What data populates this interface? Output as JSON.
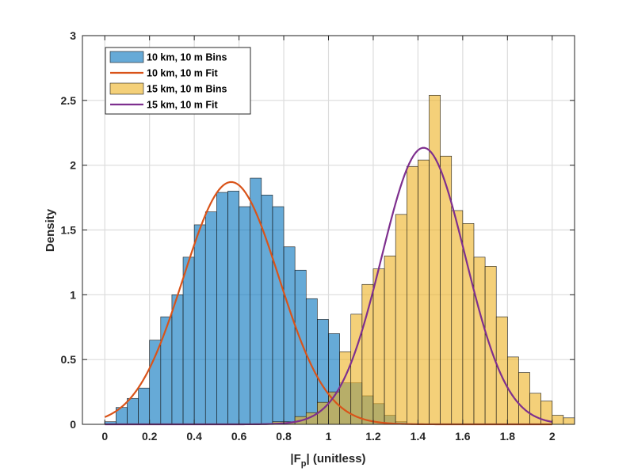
{
  "chart_data": {
    "type": "histogram",
    "xlabel": "|F_p| (unitless)",
    "xlabel_parts": {
      "main": "|F",
      "sub": "p",
      "tail": "| (unitless)"
    },
    "ylabel": "Density",
    "xlim": [
      -0.1,
      2.1
    ],
    "ylim": [
      0,
      3
    ],
    "xticks": [
      0,
      0.2,
      0.4,
      0.6,
      0.8,
      1,
      1.2,
      1.4,
      1.6,
      1.8,
      2
    ],
    "xtick_labels": [
      "0",
      "0.2",
      "0.4",
      "0.6",
      "0.8",
      "1",
      "1.2",
      "1.4",
      "1.6",
      "1.8",
      "2"
    ],
    "yticks": [
      0,
      0.5,
      1,
      1.5,
      2,
      2.5,
      3
    ],
    "ytick_labels": [
      "0",
      "0.5",
      "1",
      "1.5",
      "2",
      "2.5",
      "3"
    ],
    "grid": true,
    "legend_position": "top-left",
    "bin_width": 0.05,
    "series": [
      {
        "name": "10 km, 10 m Bins",
        "kind": "bins",
        "color": "#0072BD",
        "bin_start": 0,
        "values": [
          0.02,
          0.13,
          0.2,
          0.28,
          0.65,
          0.83,
          1.0,
          1.29,
          1.54,
          1.64,
          1.79,
          1.8,
          1.68,
          1.9,
          1.77,
          1.68,
          1.37,
          1.19,
          0.97,
          0.81,
          0.7,
          0.32,
          0.32,
          0.22,
          0.16,
          0.07,
          0.02
        ]
      },
      {
        "name": "10 km, 10 m Fit",
        "kind": "fit",
        "color": "#D95319",
        "mean": 0.565,
        "sd": 0.2133
      },
      {
        "name": "15 km, 10 m Bins",
        "kind": "bins",
        "color": "#EDB120",
        "bin_start": 0.75,
        "values": [
          0.02,
          0.02,
          0.06,
          0.09,
          0.17,
          0.25,
          0.56,
          0.85,
          1.08,
          1.2,
          1.3,
          1.62,
          1.99,
          2.04,
          2.54,
          2.07,
          1.65,
          1.55,
          1.29,
          1.22,
          0.83,
          0.52,
          0.4,
          0.24,
          0.18,
          0.07,
          0.05
        ]
      },
      {
        "name": "15 km, 10 m Fit",
        "kind": "fit",
        "color": "#7E2F8E",
        "mean": 1.425,
        "sd": 0.1869
      }
    ]
  }
}
